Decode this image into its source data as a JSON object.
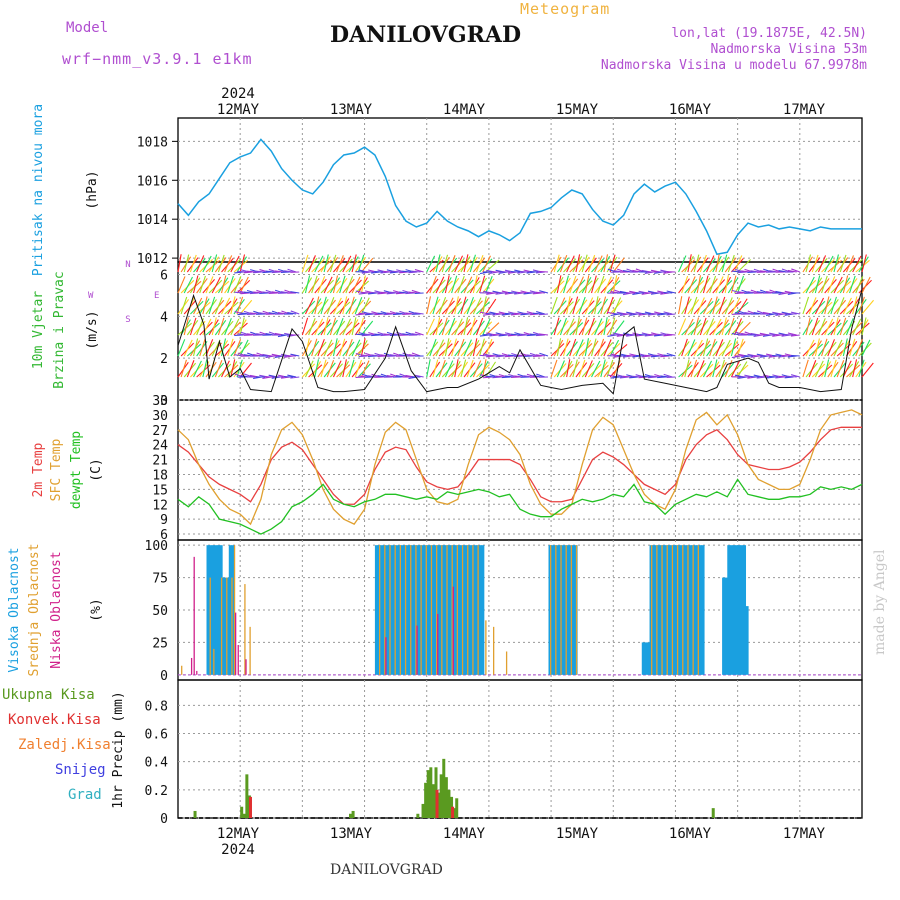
{
  "header": {
    "model_label": "Model",
    "model_name": "wrf−nmm_v3.9.1  e1km",
    "title": "DANILOVGRAD",
    "meteogram": "Meteogram",
    "lonlat": "lon,lat (19.1875E, 42.5N)",
    "elevation": "Nadmorska Visina 53m",
    "model_elevation": "Nadmorska Visina u modelu 67.9978m"
  },
  "footer": {
    "station": "DANILOVGRAD",
    "credit": "made by Angel"
  },
  "colors": {
    "pressure": "#1aa0e0",
    "wind_label": "#33b833",
    "temp_2m": "#e84040",
    "temp_sfc": "#e0a030",
    "dewpt": "#22c022",
    "cloud_high": "#1aa0e0",
    "cloud_mid": "#e0a030",
    "cloud_low": "#d0208a",
    "precip_total": "#5a9a20",
    "precip_conv": "#e03030",
    "precip_frozen": "#f08030",
    "snow": "#4040e0",
    "hail": "#30b0c0"
  },
  "chart_data": [
    {
      "type": "line",
      "panel": "pressure",
      "ylabel": [
        "Pritisak na nivou mora",
        "(hPa)"
      ],
      "ylim": [
        1011.8,
        1019.2
      ],
      "yticks": [
        1012,
        1014,
        1016,
        1018
      ],
      "x_label_top_year": "2024",
      "x_label_bottom_year": "2024",
      "days": [
        "12MAY",
        "13MAY",
        "14MAY",
        "15MAY",
        "16MAY",
        "17MAY"
      ],
      "x_hours_range": [
        0,
        132
      ],
      "grid": true,
      "series": [
        {
          "color_key": "pressure",
          "x": [
            0,
            2,
            4,
            6,
            8,
            10,
            12,
            14,
            16,
            18,
            20,
            22,
            24,
            26,
            28,
            30,
            32,
            34,
            36,
            38,
            40,
            42,
            44,
            46,
            48,
            50,
            52,
            54,
            56,
            58,
            60,
            62,
            64,
            66,
            68,
            70,
            72,
            74,
            76,
            78,
            80,
            82,
            84,
            86,
            88,
            90,
            92,
            94,
            96,
            98,
            100,
            102,
            104,
            106,
            108,
            110,
            112,
            114,
            116,
            118,
            120,
            122,
            124,
            126,
            128,
            130,
            132
          ],
          "y": [
            1014.8,
            1014.2,
            1014.9,
            1015.3,
            1016.1,
            1016.9,
            1017.2,
            1017.4,
            1018.1,
            1017.5,
            1016.6,
            1016.0,
            1015.5,
            1015.3,
            1015.9,
            1016.8,
            1017.3,
            1017.4,
            1017.7,
            1017.3,
            1016.2,
            1014.7,
            1013.9,
            1013.6,
            1013.8,
            1014.4,
            1013.9,
            1013.6,
            1013.4,
            1013.1,
            1013.4,
            1013.2,
            1012.9,
            1013.3,
            1014.3,
            1014.4,
            1014.6,
            1015.1,
            1015.5,
            1015.3,
            1014.5,
            1013.9,
            1013.7,
            1014.2,
            1015.3,
            1015.8,
            1015.4,
            1015.7,
            1015.9,
            1015.3,
            1014.4,
            1013.4,
            1012.2,
            1012.3,
            1013.2,
            1013.8,
            1013.6,
            1013.7,
            1013.5,
            1013.6,
            1013.5,
            1013.4,
            1013.6,
            1013.5,
            1013.5,
            1013.5,
            1013.5
          ]
        }
      ]
    },
    {
      "type": "line",
      "panel": "wind",
      "ylabel": [
        "10m Vjetar",
        "Brzina i Pravac",
        "(m/s)"
      ],
      "ylim": [
        0,
        6.6
      ],
      "yticks": [
        0,
        2,
        4,
        6
      ],
      "compass": [
        "N",
        "E",
        "S",
        "W"
      ],
      "grid": true,
      "series": [
        {
          "name": "speed",
          "x": [
            0,
            3,
            5,
            6,
            8,
            10,
            12,
            14,
            18,
            22,
            24,
            27,
            30,
            32,
            36,
            40,
            42,
            45,
            48,
            52,
            54,
            58,
            62,
            64,
            66,
            70,
            72,
            74,
            78,
            82,
            84,
            86,
            88,
            90,
            94,
            98,
            102,
            104,
            106,
            110,
            112,
            114,
            116,
            120,
            124,
            128,
            130,
            132
          ],
          "y": [
            2.6,
            5.0,
            3.6,
            1.0,
            2.8,
            1.1,
            1.5,
            0.5,
            0.4,
            3.4,
            2.8,
            0.6,
            0.4,
            0.4,
            0.5,
            2.0,
            3.5,
            1.4,
            0.4,
            0.6,
            0.6,
            1.0,
            1.6,
            1.3,
            2.4,
            0.7,
            0.6,
            0.5,
            0.7,
            0.8,
            0.3,
            3.1,
            3.5,
            1.0,
            0.8,
            0.6,
            0.4,
            0.6,
            1.7,
            2.0,
            1.8,
            0.8,
            0.6,
            0.6,
            0.4,
            0.5,
            3.4,
            5.3
          ]
        }
      ]
    },
    {
      "type": "line",
      "panel": "temperature",
      "ylabel": [
        "2m Temp",
        "SFC Temp",
        "dewpt Temp",
        "(C)"
      ],
      "ylim": [
        4.8,
        33
      ],
      "yticks": [
        6,
        9,
        12,
        15,
        18,
        21,
        24,
        27,
        30,
        33
      ],
      "grid": true,
      "series": [
        {
          "name": "2m Temp",
          "color_key": "temp_2m",
          "x": [
            0,
            2,
            4,
            6,
            8,
            10,
            12,
            14,
            16,
            18,
            20,
            22,
            24,
            26,
            28,
            30,
            32,
            34,
            36,
            38,
            40,
            42,
            44,
            46,
            48,
            50,
            52,
            54,
            56,
            58,
            60,
            62,
            64,
            66,
            68,
            70,
            72,
            74,
            76,
            78,
            80,
            82,
            84,
            86,
            88,
            90,
            92,
            94,
            96,
            98,
            100,
            102,
            104,
            106,
            108,
            110,
            112,
            114,
            116,
            118,
            120,
            122,
            124,
            126,
            128,
            130,
            132
          ],
          "y": [
            24,
            22.5,
            20,
            17.5,
            16,
            15,
            14,
            12.5,
            16,
            21,
            23.5,
            24.5,
            23,
            20,
            17,
            14,
            12,
            12,
            14,
            19,
            22.5,
            23.5,
            23,
            19.5,
            16.5,
            15.5,
            15,
            15.5,
            18,
            21,
            21,
            21,
            21,
            20,
            17,
            13.5,
            12.5,
            12.5,
            13,
            17,
            21,
            22.5,
            21.5,
            20,
            18,
            16,
            15,
            14,
            16,
            21,
            24,
            26,
            27,
            25,
            22,
            20,
            19.5,
            19,
            19,
            19.5,
            20.5,
            22.5,
            25,
            27,
            27.5,
            27.5,
            27.5
          ]
        },
        {
          "name": "SFC Temp",
          "color_key": "temp_sfc",
          "x": [
            0,
            2,
            4,
            6,
            8,
            10,
            12,
            14,
            16,
            18,
            20,
            22,
            24,
            26,
            28,
            30,
            32,
            34,
            36,
            38,
            40,
            42,
            44,
            46,
            48,
            50,
            52,
            54,
            56,
            58,
            60,
            62,
            64,
            66,
            68,
            70,
            72,
            74,
            76,
            78,
            80,
            82,
            84,
            86,
            88,
            90,
            92,
            94,
            96,
            98,
            100,
            102,
            104,
            106,
            108,
            110,
            112,
            114,
            116,
            118,
            120,
            122,
            124,
            126,
            128,
            130,
            132
          ],
          "y": [
            27,
            25,
            20,
            16,
            13,
            11,
            10,
            8,
            13,
            22,
            27,
            28.5,
            26,
            21,
            15,
            11,
            9,
            8,
            11,
            20,
            26.5,
            28.5,
            27,
            21,
            15,
            12.5,
            12,
            13,
            20,
            26,
            27.5,
            26.5,
            25,
            22,
            16,
            12,
            10,
            10,
            12,
            20,
            27,
            29.5,
            28,
            23,
            18,
            14,
            12,
            11,
            15,
            23,
            29,
            30.5,
            28,
            30,
            26,
            20,
            17,
            16,
            15,
            15,
            16,
            21,
            27,
            30,
            30.5,
            31,
            30
          ]
        },
        {
          "name": "dewpt Temp",
          "color_key": "dewpt",
          "x": [
            0,
            2,
            4,
            6,
            8,
            10,
            12,
            14,
            16,
            18,
            20,
            22,
            24,
            26,
            28,
            30,
            32,
            34,
            36,
            38,
            40,
            42,
            44,
            46,
            48,
            50,
            52,
            54,
            56,
            58,
            60,
            62,
            64,
            66,
            68,
            70,
            72,
            74,
            76,
            78,
            80,
            82,
            84,
            86,
            88,
            90,
            92,
            94,
            96,
            98,
            100,
            102,
            104,
            106,
            108,
            110,
            112,
            114,
            116,
            118,
            120,
            122,
            124,
            126,
            128,
            130,
            132
          ],
          "y": [
            13,
            11.5,
            13.5,
            12,
            9,
            8.5,
            8,
            7,
            6,
            7,
            8.5,
            11.5,
            12.5,
            14,
            16,
            13,
            12,
            11.5,
            12.5,
            13,
            14,
            14,
            13.5,
            13,
            13.5,
            13,
            14.5,
            14,
            14.5,
            15,
            14.5,
            13.5,
            14,
            11,
            10,
            9.5,
            9.5,
            11,
            12,
            13,
            12.5,
            13,
            14,
            13.5,
            16,
            12.5,
            12,
            10,
            12,
            13,
            14,
            13.5,
            14.5,
            13.5,
            17,
            14,
            13.5,
            13,
            13,
            13.5,
            13.5,
            14,
            15.5,
            15,
            15.5,
            15,
            16
          ]
        }
      ]
    },
    {
      "type": "bar",
      "panel": "clouds",
      "ylabel": [
        "Visoka Oblacnost",
        "Srednja Oblacnost",
        "Niska Oblacnost",
        "(%)"
      ],
      "ylim": [
        -4,
        104
      ],
      "yticks": [
        0,
        25,
        50,
        75,
        100
      ],
      "grid": true,
      "series": [
        {
          "name": "Visoka Oblacnost",
          "color_key": "cloud_high",
          "intervals": [
            [
              5.5,
              6,
              100
            ],
            [
              6,
              8.5,
              100
            ],
            [
              8.5,
              9.8,
              75
            ],
            [
              9.8,
              10.5,
              100
            ],
            [
              38,
              59,
              100
            ],
            [
              71.5,
              77,
              100
            ],
            [
              89.5,
              91,
              25
            ],
            [
              91,
              101.5,
              100
            ],
            [
              105,
              106,
              75
            ],
            [
              106,
              109.5,
              100
            ],
            [
              109.5,
              110,
              53
            ]
          ]
        },
        {
          "name": "Srednja Oblacnost",
          "color_key": "cloud_mid",
          "intervals": [
            [
              0.3,
              0.6,
              7
            ],
            [
              5.8,
              6.5,
              75
            ],
            [
              6.5,
              7.5,
              20
            ],
            [
              8,
              10.5,
              75
            ],
            [
              10.5,
              11,
              100
            ],
            [
              12.5,
              13,
              70
            ],
            [
              13.5,
              14,
              37
            ],
            [
              38.5,
              58.5,
              100
            ],
            [
              59,
              60,
              42
            ],
            [
              60.5,
              61,
              37
            ],
            [
              63,
              64,
              18
            ],
            [
              71.5,
              77,
              100
            ],
            [
              91,
              101,
              100
            ]
          ]
        },
        {
          "name": "Niska Oblacnost",
          "color_key": "cloud_low",
          "bars": [
            [
              2.5,
              13
            ],
            [
              3,
              91
            ],
            [
              3.5,
              3
            ],
            [
              11,
              48
            ],
            [
              11.5,
              23
            ],
            [
              13,
              12
            ],
            [
              40,
              29
            ],
            [
              46,
              38
            ],
            [
              50,
              47
            ],
            [
              53,
              68
            ]
          ]
        }
      ]
    },
    {
      "type": "bar",
      "panel": "precip",
      "ylabel": [
        "1hr Precip (mm)"
      ],
      "legend": [
        "Ukupna Kisa",
        "Konvek.Kisa",
        "Zaledj.Kisa",
        "Snijeg",
        "Grad"
      ],
      "ylim": [
        0,
        0.98
      ],
      "yticks": [
        0,
        0.2,
        0.4,
        0.6,
        0.8
      ],
      "grid": true,
      "series": [
        {
          "name": "Ukupna Kisa",
          "color_key": "precip_total",
          "bars": [
            [
              3,
              0.05
            ],
            [
              12,
              0.08
            ],
            [
              12.5,
              0.03
            ],
            [
              13,
              0.31
            ],
            [
              13.5,
              0.16
            ],
            [
              33,
              0.03
            ],
            [
              33.5,
              0.05
            ],
            [
              46,
              0.03
            ],
            [
              47,
              0.1
            ],
            [
              47.5,
              0.25
            ],
            [
              48,
              0.34
            ],
            [
              48.5,
              0.36
            ],
            [
              49,
              0.24
            ],
            [
              49.5,
              0.36
            ],
            [
              50,
              0.18
            ],
            [
              50.5,
              0.31
            ],
            [
              51,
              0.42
            ],
            [
              51.5,
              0.29
            ],
            [
              52,
              0.2
            ],
            [
              52.5,
              0.15
            ],
            [
              53,
              0.07
            ],
            [
              53.5,
              0.14
            ],
            [
              103,
              0.07
            ]
          ]
        },
        {
          "name": "Konvek.Kisa",
          "color_key": "precip_conv",
          "bars": [
            [
              13.7,
              0.15
            ],
            [
              49.7,
              0.2
            ],
            [
              52.7,
              0.08
            ]
          ]
        }
      ]
    }
  ]
}
